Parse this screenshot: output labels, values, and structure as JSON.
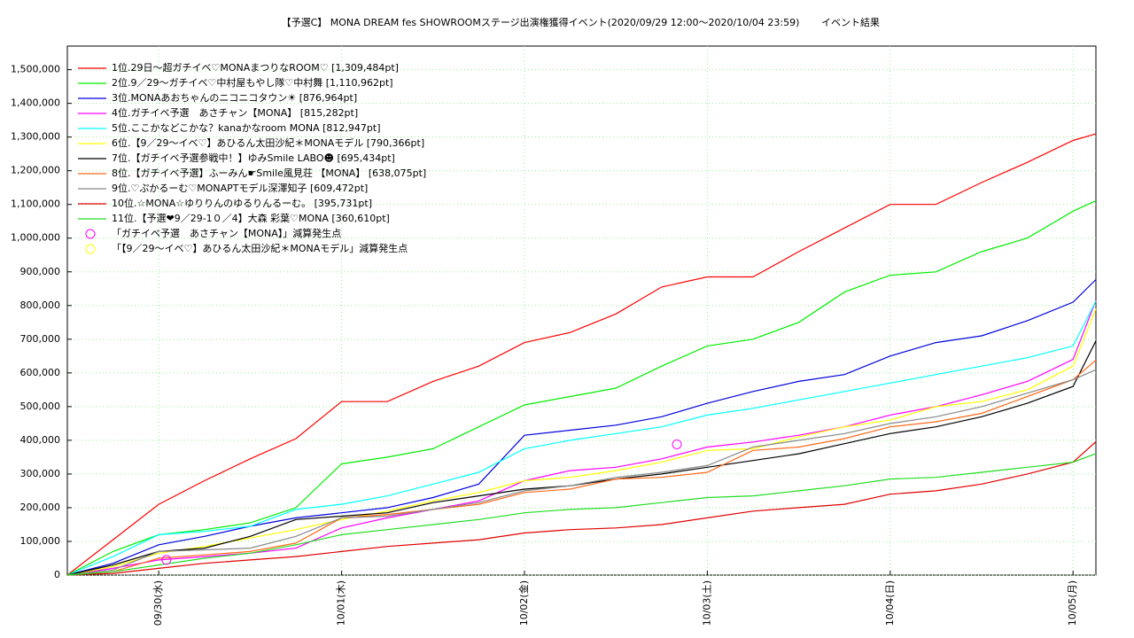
{
  "chart_data": {
    "type": "line",
    "title": "【予選C】 MONA DREAM fes SHOWROOMステージ出演権獲得イベント(2020/09/29 12:00〜2020/10/04 23:59)",
    "subtitle": "イベント結果",
    "x": [
      "09/29 12:00",
      "09/29 18:00",
      "09/30 00:00",
      "09/30 06:00",
      "09/30 12:00",
      "09/30 18:00",
      "10/01 00:00",
      "10/01 06:00",
      "10/01 12:00",
      "10/01 18:00",
      "10/02 00:00",
      "10/02 06:00",
      "10/02 12:00",
      "10/02 18:00",
      "10/03 00:00",
      "10/03 06:00",
      "10/03 12:00",
      "10/03 18:00",
      "10/04 00:00",
      "10/04 06:00",
      "10/04 12:00",
      "10/04 18:00",
      "10/05 00:00",
      "10/05 03:00"
    ],
    "series": [
      {
        "name": "1位.29日〜超ガチイベ♡MONAまつりなROOM♡ [1,309,484pt]",
        "color": "#ff0000",
        "values": [
          0,
          105000,
          210000,
          280000,
          345000,
          405000,
          515000,
          515000,
          575000,
          620000,
          690000,
          720000,
          775000,
          855000,
          885000,
          885000,
          960000,
          1030000,
          1100000,
          1100000,
          1165000,
          1225000,
          1290000,
          1309484
        ]
      },
      {
        "name": "2位.9／29〜ガチイベ♡中村屋もやし隊♡中村舞 [1,110,962pt]",
        "color": "#00ee00",
        "values": [
          0,
          70000,
          120000,
          135000,
          155000,
          200000,
          330000,
          350000,
          375000,
          440000,
          505000,
          530000,
          555000,
          620000,
          680000,
          700000,
          750000,
          840000,
          890000,
          900000,
          960000,
          1000000,
          1080000,
          1110962
        ]
      },
      {
        "name": "3位.MONAあおちゃんのニコニコタウン☀ [876,964pt]",
        "color": "#0000dd",
        "values": [
          0,
          35000,
          90000,
          115000,
          145000,
          170000,
          185000,
          200000,
          230000,
          270000,
          415000,
          430000,
          445000,
          470000,
          510000,
          545000,
          575000,
          595000,
          650000,
          690000,
          710000,
          755000,
          810000,
          876964
        ]
      },
      {
        "name": "4位.ガチイベ予選　あさチャン【MONA】 [815,282pt]",
        "color": "#ff00ff",
        "values": [
          0,
          20000,
          45000,
          55000,
          65000,
          80000,
          140000,
          170000,
          195000,
          220000,
          280000,
          310000,
          320000,
          345000,
          380000,
          395000,
          415000,
          440000,
          475000,
          500000,
          535000,
          575000,
          640000,
          815282
        ]
      },
      {
        "name": "5位.ここかなどこかな？kanaかなroom MONA [812,947pt]",
        "color": "#00ffff",
        "values": [
          0,
          55000,
          120000,
          130000,
          145000,
          195000,
          210000,
          235000,
          270000,
          305000,
          375000,
          400000,
          420000,
          440000,
          475000,
          495000,
          520000,
          545000,
          570000,
          595000,
          620000,
          645000,
          680000,
          812947
        ]
      },
      {
        "name": "6位.【9／29〜イベ♡】あひるん太田沙紀＊MONAモデル [790,366pt]",
        "color": "#ffff00",
        "values": [
          0,
          25000,
          65000,
          85000,
          110000,
          135000,
          165000,
          190000,
          220000,
          245000,
          280000,
          290000,
          310000,
          335000,
          370000,
          375000,
          410000,
          440000,
          460000,
          500000,
          515000,
          550000,
          620000,
          790366
        ]
      },
      {
        "name": "7位.【ガチイベ予選参戦中！】ゆみSmile LABO☻ [695,434pt]",
        "color": "#000000",
        "values": [
          0,
          30000,
          70000,
          80000,
          115000,
          165000,
          175000,
          185000,
          215000,
          235000,
          255000,
          265000,
          285000,
          300000,
          320000,
          340000,
          360000,
          390000,
          420000,
          440000,
          470000,
          510000,
          560000,
          695434
        ]
      },
      {
        "name": "8位.【ガチイベ予選】ふーみん☛Smile風見荘 【MONA】 [638,075pt]",
        "color": "#ff6a1a",
        "values": [
          0,
          10000,
          50000,
          60000,
          70000,
          95000,
          170000,
          180000,
          195000,
          210000,
          245000,
          255000,
          285000,
          290000,
          305000,
          370000,
          380000,
          405000,
          440000,
          455000,
          480000,
          530000,
          580000,
          638075
        ]
      },
      {
        "name": "9位.♡ぷかるーむ♡MONAPTモデル深澤知子 [609,472pt]",
        "color": "#888888",
        "values": [
          0,
          15000,
          70000,
          75000,
          80000,
          115000,
          170000,
          175000,
          195000,
          215000,
          250000,
          265000,
          290000,
          305000,
          325000,
          380000,
          400000,
          420000,
          450000,
          470000,
          500000,
          540000,
          580000,
          609472
        ]
      },
      {
        "name": "10位.☆MONA☆ゆりりんのゆるりんるーむ。 [395,731pt]",
        "color": "#e00000",
        "values": [
          0,
          5000,
          20000,
          35000,
          45000,
          55000,
          70000,
          85000,
          95000,
          105000,
          125000,
          135000,
          140000,
          150000,
          170000,
          190000,
          200000,
          210000,
          240000,
          250000,
          270000,
          300000,
          335000,
          395731
        ]
      },
      {
        "name": "11位.【予選❤9／29-1０／4】大森 彩葉♡MONA [360,610pt]",
        "color": "#22dd22",
        "values": [
          0,
          10000,
          30000,
          50000,
          65000,
          90000,
          120000,
          135000,
          150000,
          165000,
          185000,
          195000,
          200000,
          215000,
          230000,
          235000,
          250000,
          265000,
          285000,
          290000,
          305000,
          320000,
          335000,
          360610
        ]
      }
    ],
    "markers": [
      {
        "name": "「ガチイベ予選　あさチャン【MONA】」減算発生点",
        "color": "#ff00ff",
        "x": [
          "09/30 01:00",
          "10/02 20:00"
        ],
        "values": [
          45000,
          388000
        ]
      },
      {
        "name": "「【9／29〜イベ♡】あひるん太田沙紀＊MONAモデル」減算発生点",
        "color": "#ffff00",
        "x": [],
        "values": []
      }
    ],
    "xlim": [
      "09/29 12:00",
      "10/05 03:00"
    ],
    "xticks": [
      {
        "value": "09/30 00:00",
        "label": "09/30(水)"
      },
      {
        "value": "10/01 00:00",
        "label": "10/01(木)"
      },
      {
        "value": "10/02 00:00",
        "label": "10/02(金)"
      },
      {
        "value": "10/03 00:00",
        "label": "10/03(土)"
      },
      {
        "value": "10/04 00:00",
        "label": "10/04(日)"
      },
      {
        "value": "10/05 00:00",
        "label": "10/05(月)"
      }
    ],
    "ylim": [
      0,
      1570000
    ],
    "yticks": [
      0,
      {
        "value": 100000,
        "label": "100,000"
      },
      {
        "value": 200000,
        "label": "200,000"
      },
      {
        "value": 300000,
        "label": "300,000"
      },
      {
        "value": 400000,
        "label": "400,000"
      },
      {
        "value": 500000,
        "label": "500,000"
      },
      {
        "value": 600000,
        "label": "600,000"
      },
      {
        "value": 700000,
        "label": "700,000"
      },
      {
        "value": 800000,
        "label": "800,000"
      },
      {
        "value": 900000,
        "label": "900,000"
      },
      {
        "value": 1000000,
        "label": "1,000,000"
      },
      {
        "value": 1100000,
        "label": "1,100,000"
      },
      {
        "value": 1200000,
        "label": "1,200,000"
      },
      {
        "value": 1300000,
        "label": "1,300,000"
      },
      {
        "value": 1400000,
        "label": "1,400,000"
      },
      {
        "value": 1500000,
        "label": "1,500,000"
      }
    ],
    "grid": true
  }
}
